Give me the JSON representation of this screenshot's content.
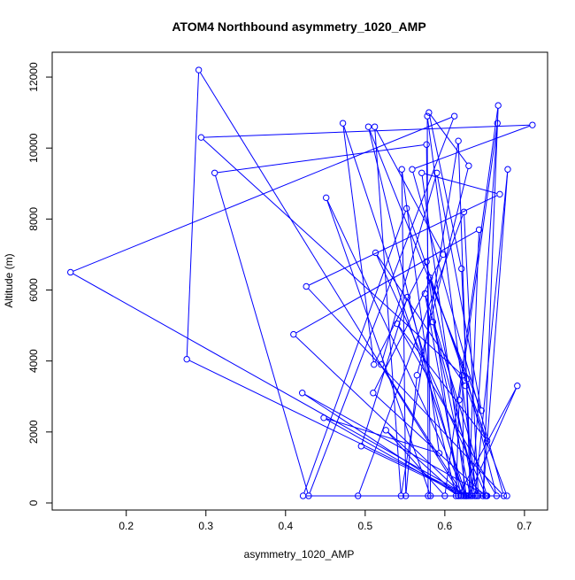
{
  "chart_data": {
    "type": "line",
    "title": "ATOM4 Northbound asymmetry_1020_AMP",
    "xlabel": "asymmetry_1020_AMP",
    "ylabel": "Altitude (m)",
    "xlim": [
      0.107,
      0.729
    ],
    "ylim": [
      -200,
      12700
    ],
    "x_ticks": [
      0.2,
      0.3,
      0.4,
      0.5,
      0.6,
      0.7
    ],
    "x_tick_labels": [
      "0.2",
      "0.3",
      "0.4",
      "0.5",
      "0.6",
      "0.7"
    ],
    "y_ticks": [
      0,
      2000,
      4000,
      6000,
      8000,
      10000,
      12000
    ],
    "y_tick_labels": [
      "0",
      "2000",
      "4000",
      "6000",
      "8000",
      "10000",
      "12000"
    ],
    "grid": false,
    "legend": "none",
    "series": [
      {
        "color": "#0000ff",
        "marker": "open-circle",
        "x": [
          0.621,
          0.291,
          0.276,
          0.629,
          0.13,
          0.612,
          0.429,
          0.311,
          0.577,
          0.582,
          0.451,
          0.627,
          0.651,
          0.51,
          0.598,
          0.512,
          0.545,
          0.617,
          0.632,
          0.585,
          0.642,
          0.624,
          0.491,
          0.64,
          0.578,
          0.579,
          0.627,
          0.472,
          0.511,
          0.577,
          0.617,
          0.421,
          0.653,
          0.575,
          0.62,
          0.448,
          0.593,
          0.546,
          0.551,
          0.565,
          0.63,
          0.58,
          0.621,
          0.634,
          0.666,
          0.618,
          0.614,
          0.504,
          0.646,
          0.59,
          0.52,
          0.624,
          0.41,
          0.643,
          0.63,
          0.691,
          0.617,
          0.526,
          0.6,
          0.667,
          0.648,
          0.679,
          0.638,
          0.581,
          0.628,
          0.665,
          0.54,
          0.653,
          0.552,
          0.422,
          0.627,
          0.571,
          0.669,
          0.426,
          0.674,
          0.559,
          0.71,
          0.294,
          0.622,
          0.624,
          0.553,
          0.495,
          0.626,
          0.678,
          0.626,
          0.513,
          0.652
        ],
        "y": [
          200,
          12200,
          4050,
          200,
          6500,
          10900,
          200,
          9300,
          10100,
          200,
          8600,
          200,
          200,
          3100,
          7000,
          10600,
          200,
          10200,
          200,
          5100,
          200,
          8200,
          200,
          200,
          10900,
          200,
          200,
          10700,
          3900,
          6800,
          200,
          3100,
          200,
          5900,
          200,
          2400,
          1400,
          9400,
          200,
          3600,
          9500,
          11000,
          6600,
          200,
          10700,
          2900,
          200,
          10600,
          2600,
          9300,
          3900,
          200,
          4750,
          7700,
          200,
          3300,
          200,
          2050,
          200,
          11200,
          200,
          9400,
          200,
          6350,
          3500,
          200,
          5050,
          1750,
          8300,
          200,
          200,
          9300,
          8700,
          6100,
          200,
          9400,
          10650,
          10300,
          3600,
          200,
          5800,
          1600,
          200,
          200,
          3300,
          7050,
          200
        ]
      }
    ]
  }
}
